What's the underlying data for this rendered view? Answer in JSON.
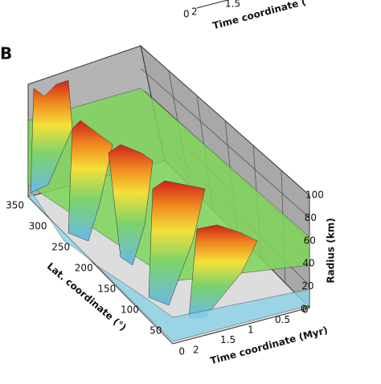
{
  "top_panel": {
    "lat_tick": "0",
    "time_ticks": [
      "2",
      "1.5"
    ],
    "time_label": "Time coordinate ("
  },
  "panel": {
    "label": "B",
    "lat_axis": {
      "label": "Lat. coordinate (°)",
      "ticks": [
        "350",
        "300",
        "250",
        "200",
        "150",
        "100",
        "50",
        "0"
      ]
    },
    "time_axis": {
      "label": "Time coordinate (Myr)",
      "ticks": [
        "2",
        "1.5",
        "1",
        "0.5",
        "0"
      ]
    },
    "radius_axis": {
      "label": "Radius (km)",
      "ticks": [
        "0",
        "20",
        "40",
        "60",
        "80",
        "100"
      ]
    }
  }
}
